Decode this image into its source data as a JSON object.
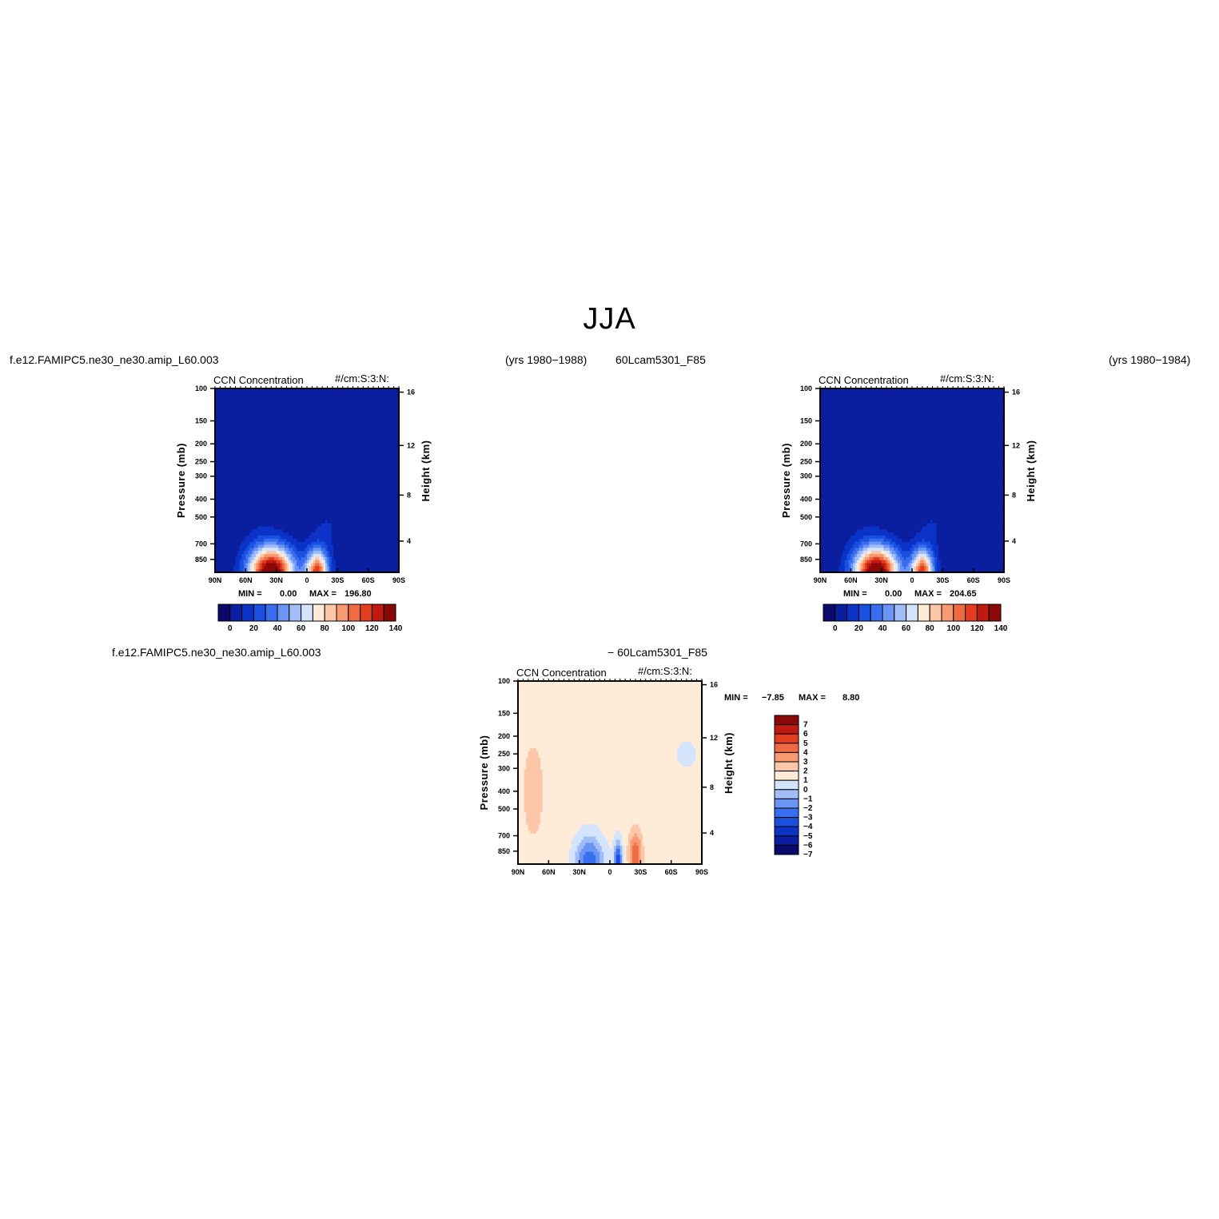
{
  "page": {
    "title": "JJA",
    "header_left_1": "f.e12.FAMIPC5.ne30_ne30.amip_L60.003",
    "header_mid_1": "(yrs 1980−1988)",
    "header_mid_2": "60Lcam5301_F85",
    "header_right_1": "(yrs 1980−1984)",
    "header_left_2": "f.e12.FAMIPC5.ne30_ne30.amip_L60.003",
    "header_mid_3": "− 60Lcam5301_F85"
  },
  "colors": {
    "abs_scale": [
      "#0a0a6e",
      "#0b1ea0",
      "#0b33c8",
      "#1a50e0",
      "#3a6ef0",
      "#6a95f5",
      "#a0bdf8",
      "#d4e4fc",
      "#ffecd8",
      "#fcc6a8",
      "#f89a72",
      "#f06a42",
      "#e43c1e",
      "#c01a10",
      "#8a0808"
    ],
    "diff_scale": [
      "#0a0a6e",
      "#0b1ea0",
      "#0b33c8",
      "#1a50e0",
      "#3a6ef0",
      "#6a95f5",
      "#a0bdf8",
      "#d4e4fc",
      "#ffecd8",
      "#fcc6a8",
      "#f89a72",
      "#f06a42",
      "#e43c1e",
      "#c01a10",
      "#8a0808"
    ]
  },
  "chart_data": [
    {
      "type": "heatmap",
      "panel": "model",
      "title": "CCN Concentration",
      "units": "#/cm:S:3:N:",
      "xlabel": "",
      "ylabel": "Pressure (mb)",
      "ylabel_right": "Height (km)",
      "x_ticks": [
        "90N",
        "60N",
        "30N",
        "0",
        "30S",
        "60S",
        "90S"
      ],
      "y_ticks": [
        "100",
        "150",
        "200",
        "250",
        "300",
        "400",
        "500",
        "700",
        "850"
      ],
      "y_ticks_right": [
        "16",
        "12",
        "8",
        "4"
      ],
      "min_label": "MIN =",
      "min": "0.00",
      "max_label": "MAX =",
      "max": "196.80",
      "colorbar_labels": [
        "0",
        "20",
        "40",
        "60",
        "80",
        "100",
        "120",
        "140"
      ]
    },
    {
      "type": "heatmap",
      "panel": "control",
      "title": "CCN Concentration",
      "units": "#/cm:S:3:N:",
      "xlabel": "",
      "ylabel": "Pressure (mb)",
      "ylabel_right": "Height (km)",
      "x_ticks": [
        "90N",
        "60N",
        "30N",
        "0",
        "30S",
        "60S",
        "90S"
      ],
      "y_ticks": [
        "100",
        "150",
        "200",
        "250",
        "300",
        "400",
        "500",
        "700",
        "850"
      ],
      "y_ticks_right": [
        "16",
        "12",
        "8",
        "4"
      ],
      "min_label": "MIN =",
      "min": "0.00",
      "max_label": "MAX =",
      "max": "204.65",
      "colorbar_labels": [
        "0",
        "20",
        "40",
        "60",
        "80",
        "100",
        "120",
        "140"
      ]
    },
    {
      "type": "heatmap",
      "panel": "difference",
      "title": "CCN Concentration",
      "units": "#/cm:S:3:N:",
      "xlabel": "",
      "ylabel": "Pressure (mb)",
      "ylabel_right": "Height (km)",
      "x_ticks": [
        "90N",
        "60N",
        "30N",
        "0",
        "30S",
        "60S",
        "90S"
      ],
      "y_ticks": [
        "100",
        "150",
        "200",
        "250",
        "300",
        "400",
        "500",
        "700",
        "850"
      ],
      "y_ticks_right": [
        "16",
        "12",
        "8",
        "4"
      ],
      "min_label": "MIN =",
      "min": "−7.85",
      "max_label": "MAX =",
      "max": "8.80",
      "colorbar_labels": [
        "7",
        "6",
        "5",
        "4",
        "3",
        "2",
        "1",
        "0",
        "−1",
        "−2",
        "−3",
        "−4",
        "−5",
        "−6",
        "−7"
      ]
    }
  ]
}
